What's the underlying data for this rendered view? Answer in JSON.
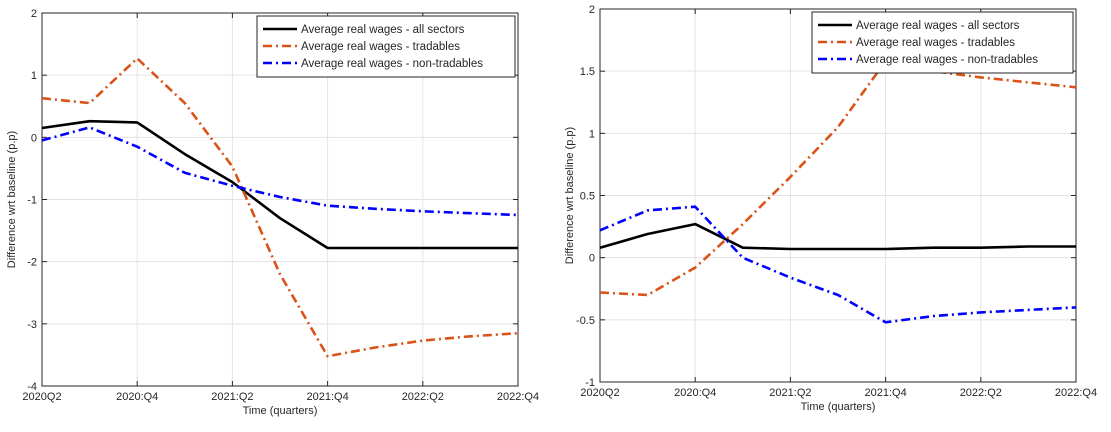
{
  "chart_data": [
    {
      "type": "line",
      "xlabel": "Time (quarters)",
      "ylabel": "Difference wrt baseline (p.p)",
      "ylim": [
        -4,
        2
      ],
      "yticks": [
        "-4",
        "-3",
        "-2",
        "-1",
        "0",
        "1",
        "2"
      ],
      "x_ticks": [
        "2020Q2",
        "2020:Q4",
        "2021:Q2",
        "2021:Q4",
        "2022:Q2",
        "2022:Q4"
      ],
      "grid": true,
      "legend_position": "top-right",
      "series": [
        {
          "name": "Average real wages - all sectors",
          "color": "#000000",
          "dash": "solid",
          "values": [
            0.15,
            0.26,
            0.24,
            -0.27,
            -0.72,
            -1.3,
            -1.78,
            -1.78,
            -1.78,
            -1.78,
            -1.78
          ]
        },
        {
          "name": "Average real wages - tradables",
          "color": "#D95319",
          "dash": "dashdot",
          "values": [
            0.63,
            0.55,
            1.27,
            0.55,
            -0.47,
            -2.2,
            -3.52,
            -3.38,
            -3.27,
            -3.2,
            -3.15
          ]
        },
        {
          "name": "Average real wages - non-tradables",
          "color": "#0000FF",
          "dash": "dashdot",
          "values": [
            -0.05,
            0.16,
            -0.15,
            -0.57,
            -0.78,
            -0.96,
            -1.1,
            -1.15,
            -1.19,
            -1.22,
            -1.25
          ]
        }
      ]
    },
    {
      "type": "line",
      "xlabel": "Time (quarters)",
      "ylabel": "Difference wrt baseline (p.p)",
      "ylim": [
        -1,
        2
      ],
      "yticks": [
        "-1",
        "-0.5",
        "0",
        "0.5",
        "1",
        "1.5",
        "2"
      ],
      "x_ticks": [
        "2020Q2",
        "2020:Q4",
        "2021:Q2",
        "2021:Q4",
        "2022:Q2",
        "2022:Q4"
      ],
      "grid": true,
      "legend_position": "top-right",
      "series": [
        {
          "name": "Average real wages - all sectors",
          "color": "#000000",
          "dash": "solid",
          "values": [
            0.08,
            0.19,
            0.27,
            0.08,
            0.07,
            0.07,
            0.07,
            0.08,
            0.08,
            0.09,
            0.09
          ]
        },
        {
          "name": "Average real wages - tradables",
          "color": "#D95319",
          "dash": "dashdot",
          "values": [
            -0.28,
            -0.3,
            -0.08,
            0.27,
            0.65,
            1.05,
            1.58,
            1.5,
            1.45,
            1.41,
            1.37
          ]
        },
        {
          "name": "Average real wages - non-tradables",
          "color": "#0000FF",
          "dash": "dashdot",
          "values": [
            0.22,
            0.38,
            0.41,
            0.0,
            -0.16,
            -0.3,
            -0.52,
            -0.47,
            -0.44,
            -0.42,
            -0.4
          ]
        }
      ]
    }
  ]
}
